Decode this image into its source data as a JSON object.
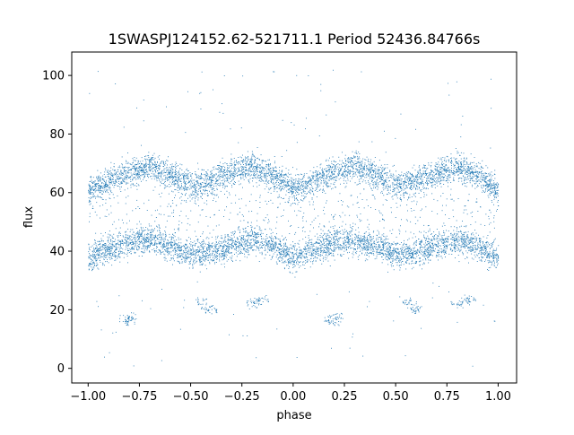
{
  "chart_data": {
    "type": "scatter",
    "title": "1SWASPJ124152.62-521711.1 Period 52436.84766s",
    "xlabel": "phase",
    "ylabel": "flux",
    "xlim": [
      -1.08,
      1.09
    ],
    "ylim": [
      -5,
      108
    ],
    "x_ticks": [
      -1.0,
      -0.75,
      -0.5,
      -0.25,
      0.0,
      0.25,
      0.5,
      0.75,
      1.0
    ],
    "x_tick_labels": [
      "−1.00",
      "−0.75",
      "−0.50",
      "−0.25",
      "0.00",
      "0.25",
      "0.50",
      "0.75",
      "1.00"
    ],
    "y_ticks": [
      0,
      20,
      40,
      60,
      80,
      100
    ],
    "y_tick_labels": [
      "0",
      "20",
      "40",
      "60",
      "80",
      "100"
    ],
    "grid": false,
    "point_color": "#1f77b4",
    "series": [
      {
        "band": "upper",
        "x": [
          -1.0,
          -0.9,
          -0.8,
          -0.7,
          -0.6,
          -0.5,
          -0.4,
          -0.3,
          -0.2,
          -0.1,
          0.0,
          0.1,
          0.2,
          0.3,
          0.4,
          0.5,
          0.6,
          0.7,
          0.8,
          0.9,
          1.0
        ],
        "y": [
          61,
          64,
          67,
          69,
          66,
          63,
          64,
          67,
          69,
          66,
          61,
          64,
          67,
          69,
          66,
          63,
          64,
          67,
          69,
          66,
          61
        ]
      },
      {
        "band": "lower",
        "x": [
          -1.0,
          -0.9,
          -0.8,
          -0.7,
          -0.6,
          -0.5,
          -0.4,
          -0.3,
          -0.2,
          -0.1,
          0.0,
          0.1,
          0.2,
          0.3,
          0.4,
          0.5,
          0.6,
          0.7,
          0.8,
          0.9,
          1.0
        ],
        "y": [
          38,
          41,
          43,
          44,
          42,
          39,
          40,
          42,
          44,
          42,
          38,
          41,
          43,
          44,
          42,
          39,
          40,
          42,
          44,
          42,
          38
        ]
      },
      {
        "band": "sparse",
        "x": [
          -0.82,
          -0.8,
          -0.78,
          -0.45,
          -0.42,
          -0.4,
          -0.2,
          -0.18,
          -0.15,
          0.18,
          0.2,
          0.22,
          0.55,
          0.58,
          0.6,
          0.8,
          0.83,
          0.86
        ],
        "y": [
          17,
          16,
          18,
          23,
          21,
          20,
          22,
          23,
          24,
          17,
          16,
          18,
          23,
          21,
          20,
          22,
          23,
          24
        ]
      }
    ]
  }
}
